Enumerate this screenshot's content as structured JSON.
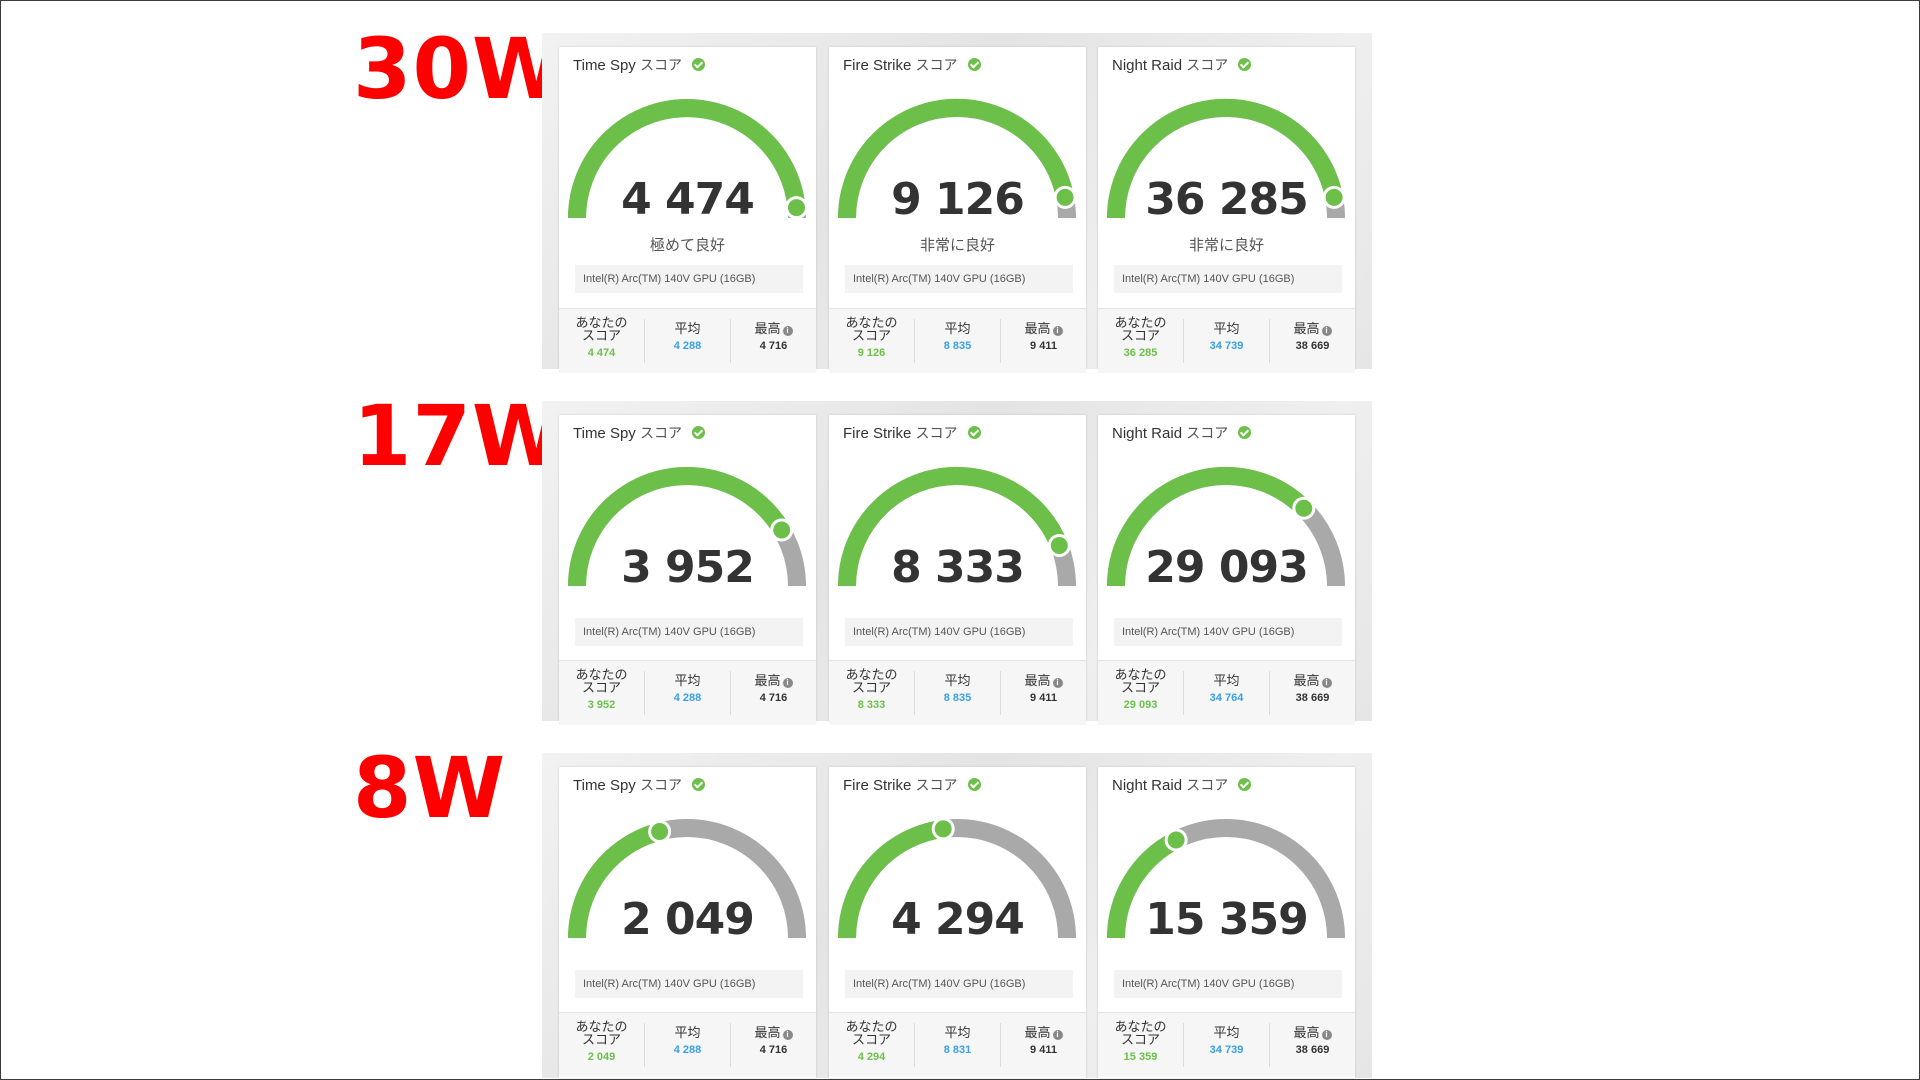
{
  "rows": [
    {
      "label": "30W",
      "cards": [
        {
          "title": "Time Spy",
          "title_jp": "スコア",
          "score": "4 474",
          "rating": "極めて良好",
          "gpu": "Intel(R) Arc(TM) 140V GPU (16GB)",
          "you_label": "あなたのスコア",
          "you": "4 474",
          "avg_label": "平均",
          "avg": "4 288",
          "best_label": "最高",
          "best": "4 716",
          "fill": 0.97
        },
        {
          "title": "Fire Strike",
          "title_jp": "スコア",
          "score": "9 126",
          "rating": "非常に良好",
          "gpu": "Intel(R) Arc(TM) 140V GPU (16GB)",
          "you_label": "あなたのスコア",
          "you": "9 126",
          "avg_label": "平均",
          "avg": "8 835",
          "best_label": "最高",
          "best": "9 411",
          "fill": 0.94
        },
        {
          "title": "Night Raid",
          "title_jp": "スコア",
          "score": "36 285",
          "rating": "非常に良好",
          "gpu": "Intel(R) Arc(TM) 140V GPU (16GB)",
          "you_label": "あなたのスコア",
          "you": "36 285",
          "avg_label": "平均",
          "avg": "34 739",
          "best_label": "最高",
          "best": "38 669",
          "fill": 0.94
        }
      ]
    },
    {
      "label": "17W",
      "cards": [
        {
          "title": "Time Spy",
          "title_jp": "スコア",
          "score": "3 952",
          "rating": "",
          "gpu": "Intel(R) Arc(TM) 140V GPU (16GB)",
          "you_label": "あなたのスコア",
          "you": "3 952",
          "avg_label": "平均",
          "avg": "4 288",
          "best_label": "最高",
          "best": "4 716",
          "fill": 0.83
        },
        {
          "title": "Fire Strike",
          "title_jp": "スコア",
          "score": "8 333",
          "rating": "",
          "gpu": "Intel(R) Arc(TM) 140V GPU (16GB)",
          "you_label": "あなたのスコア",
          "you": "8 333",
          "avg_label": "平均",
          "avg": "8 835",
          "best_label": "最高",
          "best": "9 411",
          "fill": 0.88
        },
        {
          "title": "Night Raid",
          "title_jp": "スコア",
          "score": "29 093",
          "rating": "",
          "gpu": "Intel(R) Arc(TM) 140V GPU (16GB)",
          "you_label": "あなたのスコア",
          "you": "29 093",
          "avg_label": "平均",
          "avg": "34 764",
          "best_label": "最高",
          "best": "38 669",
          "fill": 0.75
        }
      ]
    },
    {
      "label": "8W",
      "cards": [
        {
          "title": "Time Spy",
          "title_jp": "スコア",
          "score": "2 049",
          "rating": "",
          "gpu": "Intel(R) Arc(TM) 140V GPU (16GB)",
          "you_label": "あなたのスコア",
          "you": "2 049",
          "avg_label": "平均",
          "avg": "4 288",
          "best_label": "最高",
          "best": "4 716",
          "fill": 0.42
        },
        {
          "title": "Fire Strike",
          "title_jp": "スコア",
          "score": "4 294",
          "rating": "",
          "gpu": "Intel(R) Arc(TM) 140V GPU (16GB)",
          "you_label": "あなたのスコア",
          "you": "4 294",
          "avg_label": "平均",
          "avg": "8 831",
          "best_label": "最高",
          "best": "9 411",
          "fill": 0.46
        },
        {
          "title": "Night Raid",
          "title_jp": "スコア",
          "score": "15 359",
          "rating": "",
          "gpu": "Intel(R) Arc(TM) 140V GPU (16GB)",
          "you_label": "あなたのスコア",
          "you": "15 359",
          "avg_label": "平均",
          "avg": "34 739",
          "best_label": "最高",
          "best": "38 669",
          "fill": 0.35
        }
      ]
    }
  ],
  "colors": {
    "gauge_fill": "#6cc04a",
    "gauge_track": "#a9a9a9",
    "title_red": "#ff0000"
  }
}
